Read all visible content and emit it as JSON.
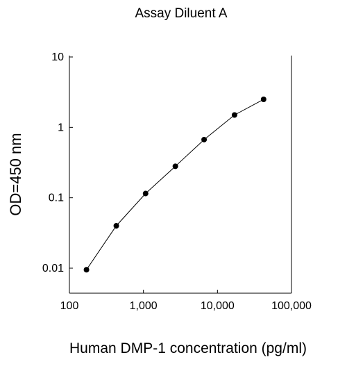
{
  "chart_data": {
    "type": "line",
    "title": "Assay Diluent A",
    "xlabel": "Human DMP-1 concentration (pg/ml)",
    "ylabel": "OD=450 nm",
    "x_scale": "log",
    "y_scale": "log",
    "xlim": [
      100,
      100000
    ],
    "ylim": [
      0.005,
      10
    ],
    "x_ticks": [
      {
        "value": 100,
        "label": "100"
      },
      {
        "value": 1000,
        "label": "1,000"
      },
      {
        "value": 10000,
        "label": "10,000"
      },
      {
        "value": 100000,
        "label": "100,000"
      }
    ],
    "y_ticks": [
      {
        "value": 10,
        "label": "10"
      },
      {
        "value": 1,
        "label": "1"
      },
      {
        "value": 0.1,
        "label": "0.1"
      },
      {
        "value": 0.01,
        "label": "0.01"
      }
    ],
    "grid": false,
    "legend": "none",
    "series": [
      {
        "x": [
          170,
          430,
          1070,
          2700,
          6600,
          17000,
          42000
        ],
        "y": [
          0.0095,
          0.04,
          0.115,
          0.28,
          0.67,
          1.5,
          2.5
        ]
      }
    ],
    "colors": {
      "line": "#000000",
      "marker": "#000000",
      "axis": "#000000"
    }
  }
}
